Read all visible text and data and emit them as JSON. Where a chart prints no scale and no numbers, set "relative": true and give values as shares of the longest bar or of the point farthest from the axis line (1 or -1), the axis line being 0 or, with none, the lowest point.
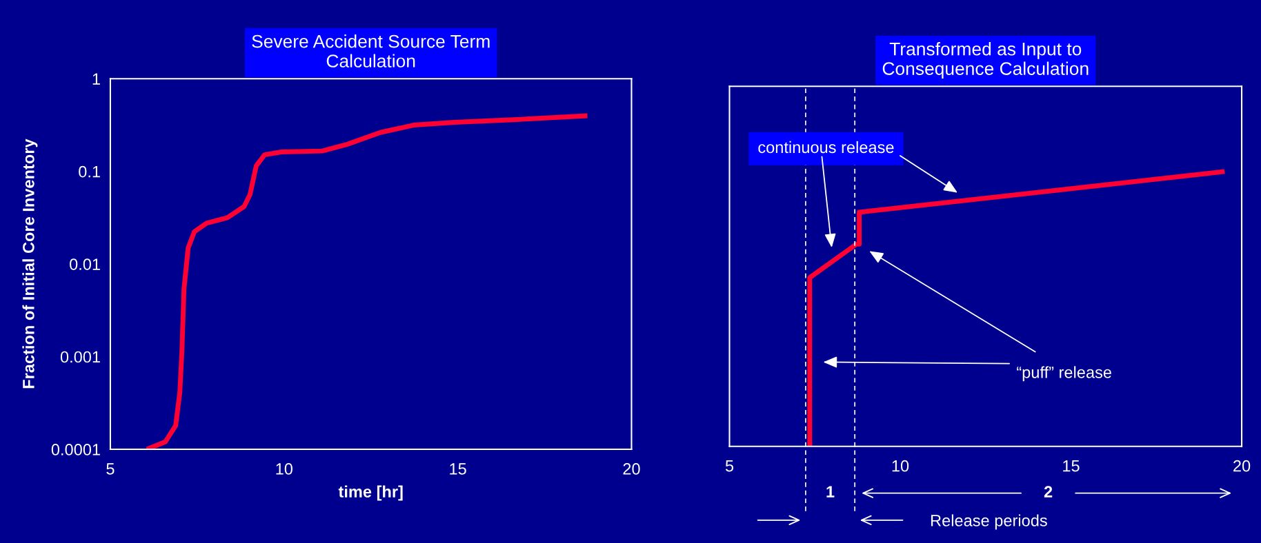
{
  "chart_data": [
    {
      "type": "line",
      "title": "Severe Accident Source Term\nCalculation",
      "xlabel": "time [hr]",
      "ylabel": "Fraction of Initial Core Inventory",
      "color": "#ff0033",
      "x": [
        6.05,
        6.58,
        6.88,
        7.0,
        7.06,
        7.12,
        7.24,
        7.42,
        7.77,
        8.37,
        8.85,
        9.02,
        9.2,
        9.44,
        9.92,
        11.1,
        11.8,
        12.77,
        13.73,
        14.9,
        16.7,
        18.73
      ],
      "values": [
        0.0001,
        0.00012,
        0.00018,
        0.00041,
        0.00115,
        0.0054,
        0.0149,
        0.0224,
        0.0276,
        0.0316,
        0.0417,
        0.0563,
        0.115,
        0.151,
        0.162,
        0.166,
        0.195,
        0.263,
        0.316,
        0.339,
        0.363,
        0.398
      ],
      "xlim": [
        5,
        20
      ],
      "ylim": [
        0.0001,
        1
      ],
      "xticks": [
        5,
        10,
        15,
        20
      ],
      "yticks": [
        0.0001,
        0.001,
        0.01,
        0.1,
        1
      ],
      "log": true,
      "grid": false,
      "legend": false
    },
    {
      "type": "line",
      "title": "Transformed as Input to\nConsequence Calculation",
      "color": "#ff0033",
      "relative": true,
      "x": [
        7.35,
        7.35,
        8.72,
        8.8,
        8.8,
        19.5
      ],
      "values": [
        0,
        0.614,
        0.736,
        0.736,
        0.852,
        1
      ],
      "xlim": [
        5,
        20
      ],
      "xticks": [
        5,
        10,
        15,
        20
      ],
      "tick_labels": "x",
      "grid": false,
      "legend": false,
      "ref_lines": [
        {
          "axis": "x",
          "value": 7.23,
          "color": "#ffffff",
          "line_style": "dashed"
        },
        {
          "axis": "x",
          "value": 8.67,
          "color": "#ffffff",
          "line_style": "dashed"
        }
      ],
      "annotations": [
        "continuous release",
        "“puff” release",
        "1",
        "2",
        "Release periods"
      ]
    }
  ]
}
